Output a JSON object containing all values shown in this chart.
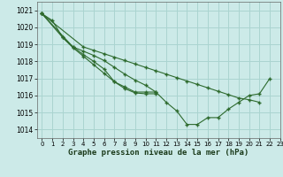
{
  "title": "Graphe pression niveau de la mer (hPa)",
  "bg_color": "#cceae8",
  "grid_color": "#aad4d0",
  "line_color": "#2d6a2d",
  "xlim": [
    -0.5,
    23
  ],
  "ylim": [
    1013.5,
    1021.5
  ],
  "yticks": [
    1014,
    1015,
    1016,
    1017,
    1018,
    1019,
    1020,
    1021
  ],
  "xticks": [
    0,
    1,
    2,
    3,
    4,
    5,
    6,
    7,
    8,
    9,
    10,
    11,
    12,
    13,
    14,
    15,
    16,
    17,
    18,
    19,
    20,
    21,
    22,
    23
  ],
  "series": [
    {
      "x": [
        0,
        1,
        2,
        3,
        4,
        5,
        6,
        7,
        8,
        9,
        10,
        11,
        12,
        13,
        14,
        15,
        16,
        17,
        18,
        19,
        20,
        21,
        22
      ],
      "y": [
        1020.8,
        1020.4,
        1019.4,
        1018.8,
        1018.3,
        1017.8,
        1017.3,
        1016.8,
        1016.5,
        1016.2,
        1016.2,
        1016.2,
        1015.6,
        1015.1,
        1014.3,
        1014.3,
        1014.7,
        1014.7,
        1015.2,
        1015.6,
        1016.0,
        1016.1,
        1017.0
      ]
    },
    {
      "x": [
        0,
        2,
        3,
        4,
        5,
        6,
        7,
        8,
        9,
        10,
        11
      ],
      "y": [
        1020.8,
        1019.4,
        1018.85,
        1018.4,
        1018.0,
        1017.55,
        1016.8,
        1016.4,
        1016.15,
        1016.1,
        1016.1
      ]
    },
    {
      "x": [
        0,
        3,
        4,
        5,
        6,
        7,
        8,
        9,
        10,
        11
      ],
      "y": [
        1020.8,
        1018.85,
        1018.6,
        1018.35,
        1018.05,
        1017.65,
        1017.25,
        1016.9,
        1016.6,
        1016.2
      ]
    },
    {
      "x": [
        0,
        4,
        5,
        6,
        7,
        8,
        9,
        10,
        11,
        12,
        13,
        14,
        15,
        16,
        17,
        18,
        19,
        20,
        21
      ],
      "y": [
        1020.8,
        1018.85,
        1018.65,
        1018.45,
        1018.25,
        1018.05,
        1017.85,
        1017.65,
        1017.45,
        1017.25,
        1017.05,
        1016.85,
        1016.65,
        1016.45,
        1016.25,
        1016.05,
        1015.85,
        1015.75,
        1015.6
      ]
    }
  ],
  "ylabel_fontsize": 5.5,
  "xlabel_fontsize": 6.5,
  "tick_fontsize": 5.5,
  "xtick_fontsize": 5.0
}
